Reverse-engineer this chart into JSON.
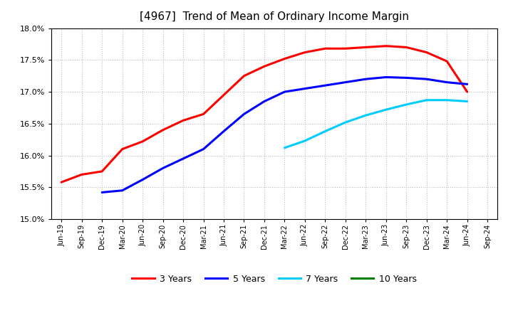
{
  "title": "[4967]  Trend of Mean of Ordinary Income Margin",
  "title_fontsize": 11,
  "ylim": [
    0.15,
    0.18
  ],
  "yticks": [
    0.15,
    0.155,
    0.16,
    0.165,
    0.17,
    0.175,
    0.18
  ],
  "background_color": "#ffffff",
  "plot_bg_color": "#ffffff",
  "grid_color": "#bbbbbb",
  "series": {
    "3 Years": {
      "color": "#ff0000",
      "x_indices": [
        0,
        1,
        2,
        3,
        4,
        5,
        6,
        7,
        8,
        9,
        10,
        11,
        12,
        13,
        14,
        15,
        16,
        17,
        18,
        19,
        20
      ],
      "y": [
        0.1558,
        0.157,
        0.1575,
        0.161,
        0.1622,
        0.164,
        0.1655,
        0.1665,
        0.1695,
        0.1725,
        0.174,
        0.1752,
        0.1762,
        0.1768,
        0.1768,
        0.177,
        0.1772,
        0.177,
        0.1762,
        0.1748,
        0.17
      ]
    },
    "5 Years": {
      "color": "#0000ff",
      "x_indices": [
        2,
        3,
        4,
        5,
        6,
        7,
        8,
        9,
        10,
        11,
        12,
        13,
        14,
        15,
        16,
        17,
        18,
        19,
        20
      ],
      "y": [
        0.1542,
        0.1545,
        0.1562,
        0.158,
        0.1595,
        0.161,
        0.1638,
        0.1665,
        0.1685,
        0.17,
        0.1705,
        0.171,
        0.1715,
        0.172,
        0.1723,
        0.1722,
        0.172,
        0.1715,
        0.1712
      ]
    },
    "7 Years": {
      "color": "#00ccff",
      "x_indices": [
        11,
        12,
        13,
        14,
        15,
        16,
        17,
        18,
        19,
        20
      ],
      "y": [
        0.1612,
        0.1623,
        0.1638,
        0.1652,
        0.1663,
        0.1672,
        0.168,
        0.1687,
        0.1687,
        0.1685
      ]
    },
    "10 Years": {
      "color": "#008000",
      "x_indices": [],
      "y": []
    }
  },
  "x_labels": [
    "Jun-19",
    "Sep-19",
    "Dec-19",
    "Mar-20",
    "Jun-20",
    "Sep-20",
    "Dec-20",
    "Mar-21",
    "Jun-21",
    "Sep-21",
    "Dec-21",
    "Mar-22",
    "Jun-22",
    "Sep-22",
    "Dec-22",
    "Mar-23",
    "Jun-23",
    "Sep-23",
    "Dec-23",
    "Mar-24",
    "Jun-24",
    "Sep-24"
  ],
  "legend_labels": [
    "3 Years",
    "5 Years",
    "7 Years",
    "10 Years"
  ],
  "legend_colors": [
    "#ff0000",
    "#0000ff",
    "#00ccff",
    "#008000"
  ]
}
